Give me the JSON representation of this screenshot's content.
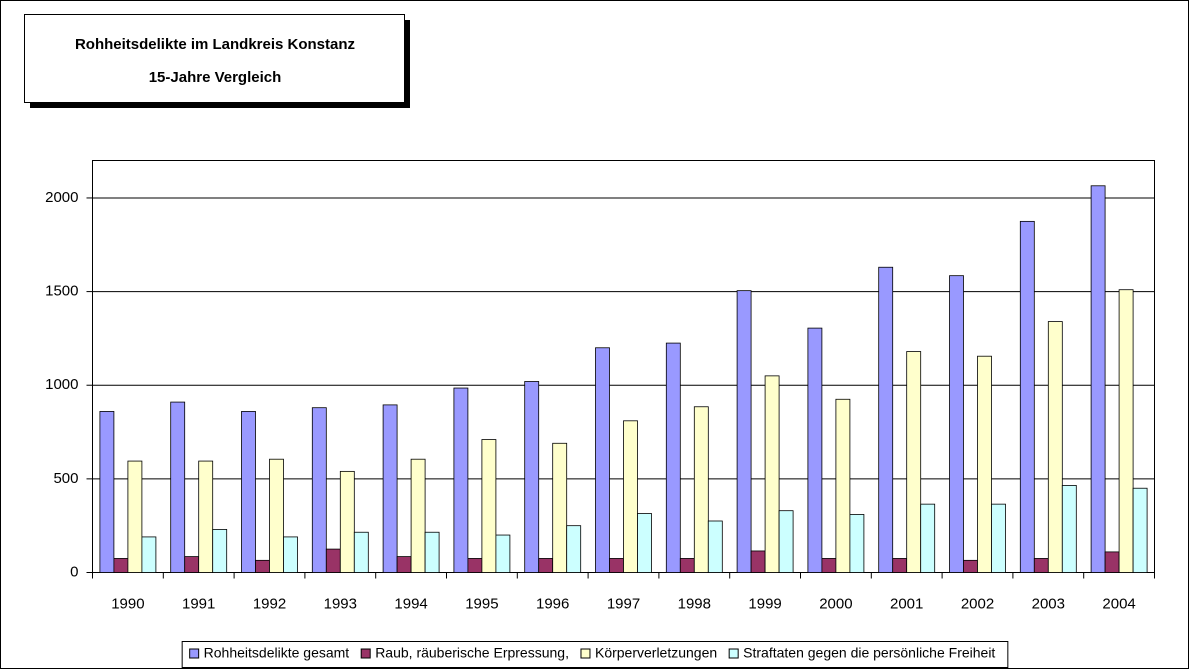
{
  "chart_data": {
    "type": "bar",
    "title": "Rohheitsdelikte im Landkreis Konstanz",
    "subtitle": "15-Jahre Vergleich",
    "categories": [
      "1990",
      "1991",
      "1992",
      "1993",
      "1994",
      "1995",
      "1996",
      "1997",
      "1998",
      "1999",
      "2000",
      "2001",
      "2002",
      "2003",
      "2004"
    ],
    "series": [
      {
        "name": "Rohheitsdelikte gesamt",
        "color": "#9999ff",
        "values": [
          860,
          910,
          860,
          880,
          895,
          985,
          1020,
          1200,
          1225,
          1505,
          1305,
          1630,
          1585,
          1875,
          2065
        ]
      },
      {
        "name": "Raub, räuberische Erpressung,",
        "color": "#993366",
        "values": [
          75,
          85,
          65,
          125,
          85,
          75,
          75,
          75,
          75,
          115,
          75,
          75,
          65,
          75,
          110
        ]
      },
      {
        "name": "Körperverletzungen",
        "color": "#ffffcc",
        "values": [
          595,
          595,
          605,
          540,
          605,
          710,
          690,
          810,
          885,
          1050,
          925,
          1180,
          1155,
          1340,
          1510
        ]
      },
      {
        "name": "Straftaten gegen die persönliche Freiheit",
        "color": "#ccffff",
        "values": [
          190,
          230,
          190,
          215,
          215,
          200,
          250,
          315,
          275,
          330,
          310,
          365,
          365,
          465,
          450
        ]
      }
    ],
    "ylim": [
      0,
      2200
    ],
    "yticks": [
      0,
      500,
      1000,
      1500,
      2000
    ],
    "grid": true,
    "legend": "bottom"
  }
}
